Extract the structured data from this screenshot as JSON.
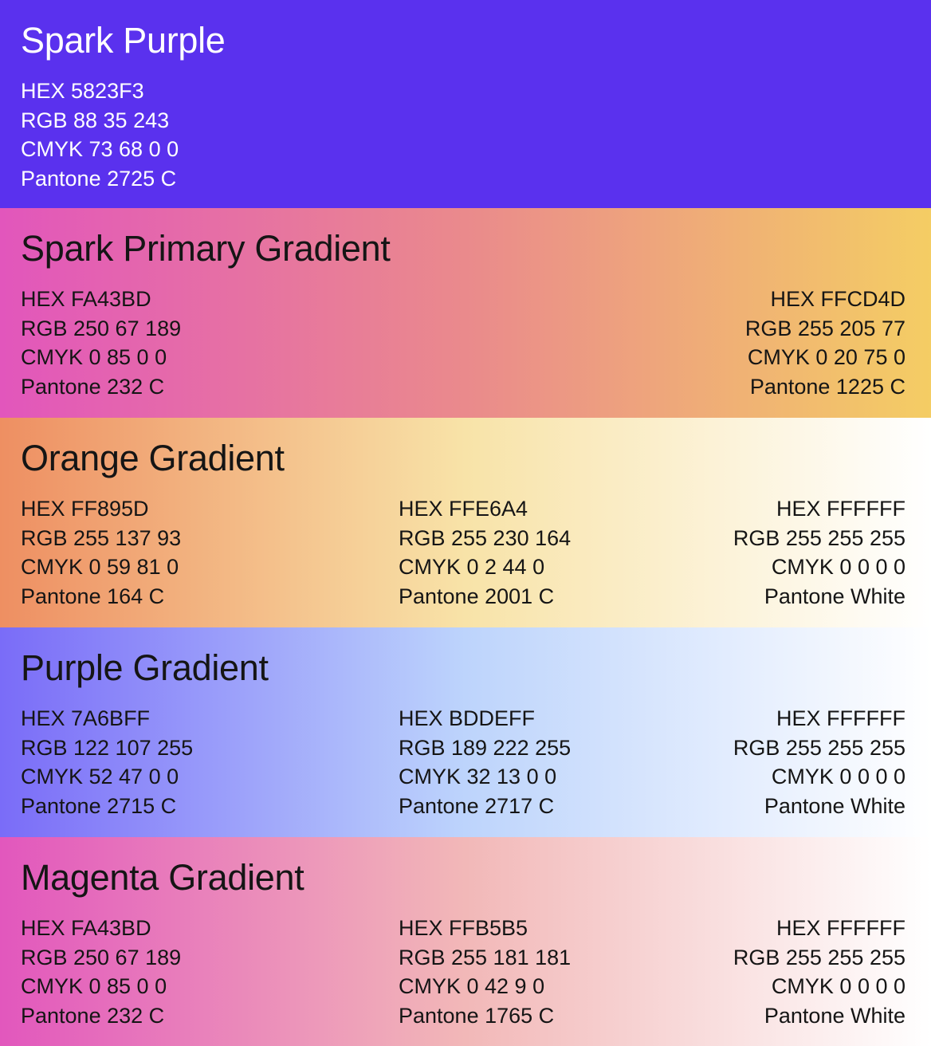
{
  "sections": [
    {
      "title": "Spark Purple",
      "background": [
        "#5A31EE"
      ],
      "swatches": [
        {
          "hex": "HEX 5823F3",
          "rgb": "RGB 88 35 243",
          "cmyk": "CMYK 73 68 0 0",
          "pantone": "Pantone 2725 C"
        }
      ]
    },
    {
      "title": "Spark Primary Gradient",
      "background": [
        "#E256BC",
        "#EA8A8C",
        "#F4CD64"
      ],
      "swatches": [
        {
          "hex": "HEX FA43BD",
          "rgb": "RGB 250 67 189",
          "cmyk": "CMYK 0 85 0 0",
          "pantone": "Pantone 232 C"
        },
        {
          "hex": "HEX FFCD4D",
          "rgb": "RGB 255 205 77",
          "cmyk": "CMYK 0 20 75 0",
          "pantone": "Pantone 1225 C"
        }
      ]
    },
    {
      "title": "Orange Gradient",
      "background": [
        "#EE8F62",
        "#F8E3A8",
        "#FFFFFF"
      ],
      "swatches": [
        {
          "hex": "HEX FF895D",
          "rgb": "RGB 255 137 93",
          "cmyk": "CMYK 0 59 81 0",
          "pantone": "Pantone 164 C"
        },
        {
          "hex": "HEX FFE6A4",
          "rgb": "RGB 255 230 164",
          "cmyk": "CMYK 0 2 44 0",
          "pantone": "Pantone 2001 C"
        },
        {
          "hex": "HEX FFFFFF",
          "rgb": "RGB 255 255 255",
          "cmyk": "CMYK 0 0 0 0",
          "pantone": "Pantone White"
        }
      ]
    },
    {
      "title": "Purple Gradient",
      "background": [
        "#7A6CF8",
        "#BDD4FC",
        "#FFFFFF"
      ],
      "swatches": [
        {
          "hex": "HEX 7A6BFF",
          "rgb": "RGB 122 107 255",
          "cmyk": "CMYK 52 47 0 0",
          "pantone": "Pantone 2715 C"
        },
        {
          "hex": "HEX BDDEFF",
          "rgb": "RGB 189 222 255",
          "cmyk": "CMYK 32 13 0 0",
          "pantone": "Pantone 2717 C"
        },
        {
          "hex": "HEX FFFFFF",
          "rgb": "RGB 255 255 255",
          "cmyk": "CMYK 0 0 0 0",
          "pantone": "Pantone White"
        }
      ]
    },
    {
      "title": "Magenta Gradient",
      "background": [
        "#E257BD",
        "#F2B8B8",
        "#FFFFFF"
      ],
      "swatches": [
        {
          "hex": "HEX FA43BD",
          "rgb": "RGB 250 67 189",
          "cmyk": "CMYK 0 85 0 0",
          "pantone": "Pantone 232 C"
        },
        {
          "hex": "HEX FFB5B5",
          "rgb": "RGB 255 181 181",
          "cmyk": "CMYK 0 42 9 0",
          "pantone": "Pantone 1765 C"
        },
        {
          "hex": "HEX FFFFFF",
          "rgb": "RGB 255 255 255",
          "cmyk": "CMYK 0 0 0 0",
          "pantone": "Pantone White"
        }
      ]
    }
  ]
}
